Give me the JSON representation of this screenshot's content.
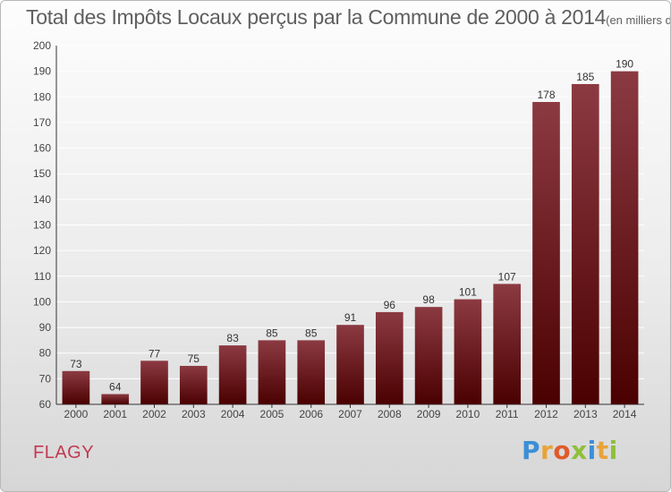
{
  "header": {
    "title": "Total des Impôts Locaux perçus par la Commune de 2000 à 2014",
    "unit": "(en milliers d'€)"
  },
  "footer": {
    "commune": "FLAGY",
    "logo_letters": [
      "P",
      "r",
      "o",
      "x",
      "i",
      "t",
      "i"
    ],
    "logo_colors": [
      "#3b8fd6",
      "#e8a33a",
      "#e05a2b",
      "#8fbf3a",
      "#3b8fd6",
      "#e8a33a",
      "#8fbf3a"
    ]
  },
  "colors": {
    "bar_top": "#8c3a42",
    "bar_bottom": "#4a0000",
    "grid": "#ffffff"
  },
  "chart_data": {
    "type": "bar",
    "title": "Total des Impôts Locaux perçus par la Commune de 2000 à 2014",
    "categories": [
      "2000",
      "2001",
      "2002",
      "2003",
      "2004",
      "2005",
      "2006",
      "2007",
      "2008",
      "2009",
      "2010",
      "2011",
      "2012",
      "2013",
      "2014"
    ],
    "values": [
      73,
      64,
      77,
      75,
      83,
      85,
      85,
      91,
      96,
      98,
      101,
      107,
      178,
      185,
      190
    ],
    "ylim": [
      60,
      200
    ],
    "yticks": [
      60,
      70,
      80,
      90,
      100,
      110,
      120,
      130,
      140,
      150,
      160,
      170,
      180,
      190,
      200
    ],
    "grid": true,
    "legend": "none"
  }
}
